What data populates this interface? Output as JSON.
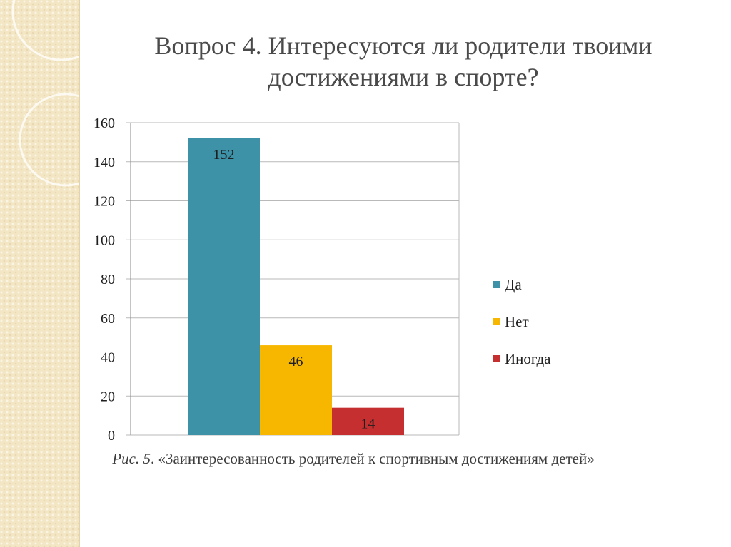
{
  "slide": {
    "title": "Вопрос 4. Интересуются ли родители твоими достижениями в спорте?",
    "caption_italic": "Рис. 5",
    "caption_text": ". «Заинтересованность родителей к спортивным достижениям детей»"
  },
  "chart_data": {
    "type": "bar",
    "categories": [
      "Да",
      "Нет",
      "Иногда"
    ],
    "values": [
      152,
      46,
      14
    ],
    "colors": [
      "#3d92a8",
      "#f7b700",
      "#c62f2f"
    ],
    "data_labels": [
      "152",
      "46",
      "14"
    ],
    "legend": [
      "Да",
      "Нет",
      "Иногда"
    ],
    "legend_position": "right",
    "ylim": [
      0,
      160
    ],
    "yticks": [
      0,
      20,
      40,
      60,
      80,
      100,
      120,
      140,
      160
    ],
    "grid": true
  }
}
